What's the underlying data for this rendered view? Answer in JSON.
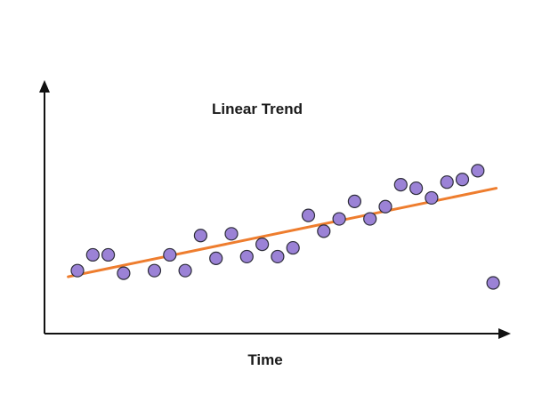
{
  "chart_data": {
    "type": "scatter",
    "title": "Linear Trend",
    "xlabel": "Time",
    "ylabel": "",
    "xlim": [
      0,
      31
    ],
    "ylim": [
      0,
      30
    ],
    "grid": false,
    "legend": "none",
    "colors": {
      "point_fill": "#9b82d6",
      "point_stroke": "#2d2d3a",
      "trend": "#ee7d2e",
      "axis": "#111111"
    },
    "series": [
      {
        "type": "scatter",
        "x": [
          2,
          3,
          4,
          5,
          7,
          8,
          9,
          10,
          11,
          12,
          13,
          14,
          15,
          16,
          17,
          18,
          19,
          20,
          21,
          22,
          23,
          24,
          25,
          26,
          27,
          28,
          29
        ],
        "y": [
          4.5,
          6.3,
          6.3,
          4.2,
          4.5,
          6.3,
          4.5,
          8.5,
          5.9,
          8.7,
          6.1,
          7.5,
          6.1,
          7.1,
          10.8,
          9.0,
          10.4,
          12.4,
          10.4,
          11.8,
          14.3,
          13.9,
          12.8,
          14.6,
          14.9,
          15.9,
          3.1
        ]
      },
      {
        "type": "line",
        "x": [
          1.4,
          29.2
        ],
        "y": [
          3.8,
          13.9
        ]
      }
    ]
  }
}
